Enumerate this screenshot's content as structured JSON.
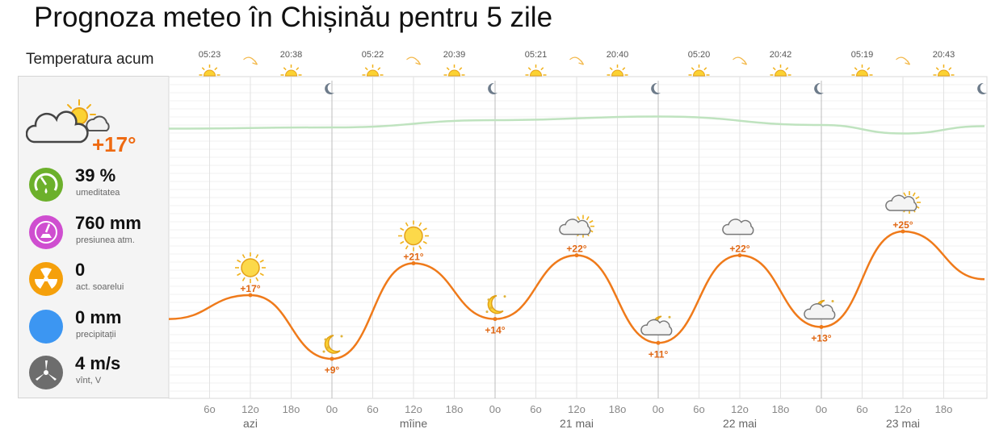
{
  "page": {
    "title": "Prognoza meteo în Chișinău pentru 5 zile"
  },
  "current": {
    "label": "Temperatura acum",
    "icon": "cloud-sun-icon",
    "temperature": "+17°",
    "metrics": [
      {
        "key": "humidity",
        "icon": "humidity-gauge-icon",
        "color": "#6cb02b",
        "value": "39 %",
        "label": "umeditatea"
      },
      {
        "key": "pressure",
        "icon": "barometer-icon",
        "color": "#cf4ed0",
        "value": "760 mm",
        "label": "presiunea atm."
      },
      {
        "key": "uv",
        "icon": "radiation-icon",
        "color": "#f5a00b",
        "value": "0",
        "label": "act. soarelui"
      },
      {
        "key": "precip",
        "icon": "rain-drop-icon",
        "color": "#3c96f2",
        "value": "0 mm",
        "label": "precipitații"
      },
      {
        "key": "wind",
        "icon": "wind-turbine-icon",
        "color": "#6d6d6d",
        "value": "4 m/s",
        "label": "vînt, V"
      }
    ]
  },
  "days": [
    {
      "label": "azi",
      "sunrise": "05:23",
      "sunset": "20:38"
    },
    {
      "label": "mîine",
      "sunrise": "05:22",
      "sunset": "20:39"
    },
    {
      "label": "21 mai",
      "sunrise": "05:21",
      "sunset": "20:40"
    },
    {
      "label": "22 mai",
      "sunrise": "05:20",
      "sunset": "20:42"
    },
    {
      "label": "23 mai",
      "sunrise": "05:19",
      "sunset": "20:43"
    }
  ],
  "hour_labels": [
    "0o",
    "6o",
    "12o",
    "18o"
  ],
  "colors": {
    "temp_line": "#ef7a1a",
    "temp_label": "#e06612",
    "pressure_line": "#bfe3bf",
    "grid": "#cfcfcf"
  },
  "chart_data": {
    "type": "line",
    "x_unit": "hours from 00:00 today",
    "x_range": [
      0,
      120
    ],
    "temperature": {
      "x": [
        0,
        12,
        24,
        36,
        48,
        60,
        72,
        84,
        96,
        108,
        120
      ],
      "y": [
        14,
        17,
        9,
        21,
        14,
        22,
        11,
        22,
        13,
        25,
        19
      ]
    },
    "extremes": [
      {
        "hour": 12,
        "label": "+17°",
        "icon": "sun-icon"
      },
      {
        "hour": 24,
        "label": "+9°",
        "icon": "moon-stars-icon"
      },
      {
        "hour": 36,
        "label": "+21°",
        "icon": "sun-icon"
      },
      {
        "hour": 48,
        "label": "+14°",
        "icon": "moon-stars-icon"
      },
      {
        "hour": 60,
        "label": "+22°",
        "icon": "sun-cloud-icon"
      },
      {
        "hour": 72,
        "label": "+11°",
        "icon": "moon-cloud-icon"
      },
      {
        "hour": 84,
        "label": "+22°",
        "icon": "cloud-icon"
      },
      {
        "hour": 96,
        "label": "+13°",
        "icon": "moon-cloud-icon"
      },
      {
        "hour": 108,
        "label": "+25°",
        "icon": "sun-cloud-icon"
      }
    ],
    "pressure_relative": {
      "x": [
        0,
        24,
        48,
        72,
        96,
        108,
        120
      ],
      "y": [
        0.35,
        0.4,
        0.7,
        0.85,
        0.5,
        0.15,
        0.45
      ]
    },
    "y_range": [
      0,
      30
    ],
    "grid": true
  }
}
